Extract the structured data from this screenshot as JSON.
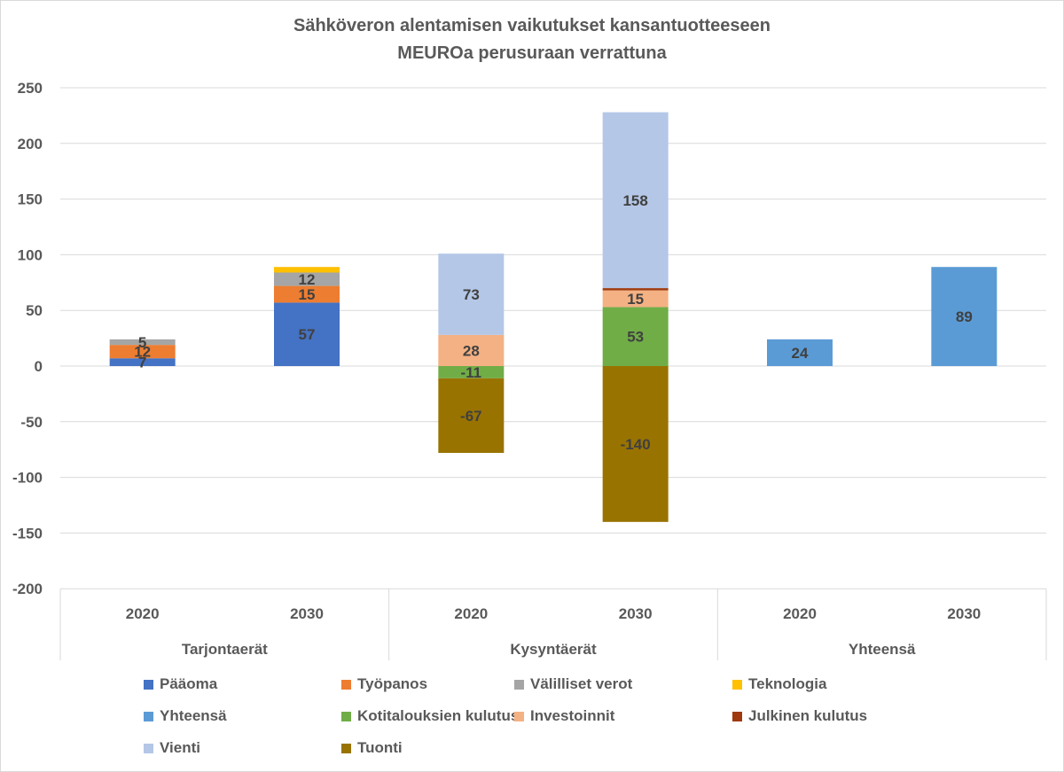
{
  "chart_data": {
    "type": "bar",
    "stacked": true,
    "title": "Sähköveron alentamisen vaikutukset kansantuotteeseen",
    "subtitle": "MEUROa perusuraan verrattuna",
    "ylim": [
      -200,
      250
    ],
    "yticks": [
      250,
      200,
      150,
      100,
      50,
      0,
      -50,
      -100,
      -150,
      -200
    ],
    "grid": true,
    "legend_position": "bottom",
    "groups": [
      {
        "name": "Tarjontaerät",
        "categories": [
          "2020",
          "2030"
        ]
      },
      {
        "name": "Kysyntäerät",
        "categories": [
          "2020",
          "2030"
        ]
      },
      {
        "name": "Yhteensä",
        "categories": [
          "2020",
          "2030"
        ]
      }
    ],
    "series": [
      {
        "name": "Pääoma",
        "color": "#4472c4",
        "values": [
          7,
          57,
          null,
          null,
          null,
          null
        ],
        "labels": [
          "7",
          "57",
          "",
          "",
          "",
          ""
        ]
      },
      {
        "name": "Työpanos",
        "color": "#ed7d31",
        "values": [
          12,
          15,
          null,
          null,
          null,
          null
        ],
        "labels": [
          "12",
          "15",
          "",
          "",
          "",
          ""
        ]
      },
      {
        "name": "Välilliset verot",
        "color": "#a5a5a5",
        "values": [
          5,
          12,
          null,
          null,
          null,
          null
        ],
        "labels": [
          "5",
          "12",
          "",
          "",
          "",
          ""
        ]
      },
      {
        "name": "Teknologia",
        "color": "#ffc000",
        "values": [
          0,
          5,
          null,
          null,
          null,
          null
        ],
        "labels": [
          "",
          "",
          "",
          "",
          "",
          ""
        ]
      },
      {
        "name": "Yhteensä",
        "color": "#5b9bd5",
        "values": [
          null,
          null,
          null,
          null,
          24,
          89
        ],
        "labels": [
          "",
          "",
          "",
          "",
          "24",
          "89"
        ]
      },
      {
        "name": "Kotitalouksien kulutus",
        "color": "#70ad47",
        "values": [
          null,
          null,
          -11,
          53,
          null,
          null
        ],
        "labels": [
          "",
          "",
          "-11",
          "53",
          "",
          ""
        ]
      },
      {
        "name": "Investoinnit",
        "color": "#f4b183",
        "values": [
          null,
          null,
          28,
          15,
          null,
          null
        ],
        "labels": [
          "",
          "",
          "28",
          "15",
          "",
          ""
        ]
      },
      {
        "name": "Julkinen kulutus",
        "color": "#9e3a0e",
        "values": [
          null,
          null,
          0,
          2,
          null,
          null
        ],
        "labels": [
          "",
          "",
          "",
          "",
          "",
          ""
        ]
      },
      {
        "name": "Vienti",
        "color": "#b4c7e7",
        "values": [
          null,
          null,
          73,
          158,
          null,
          null
        ],
        "labels": [
          "",
          "",
          "73",
          "158",
          "",
          ""
        ]
      },
      {
        "name": "Tuonti",
        "color": "#997300",
        "values": [
          null,
          null,
          -67,
          -140,
          null,
          null
        ],
        "labels": [
          "",
          "",
          "-67",
          "-140",
          "",
          ""
        ]
      }
    ]
  }
}
